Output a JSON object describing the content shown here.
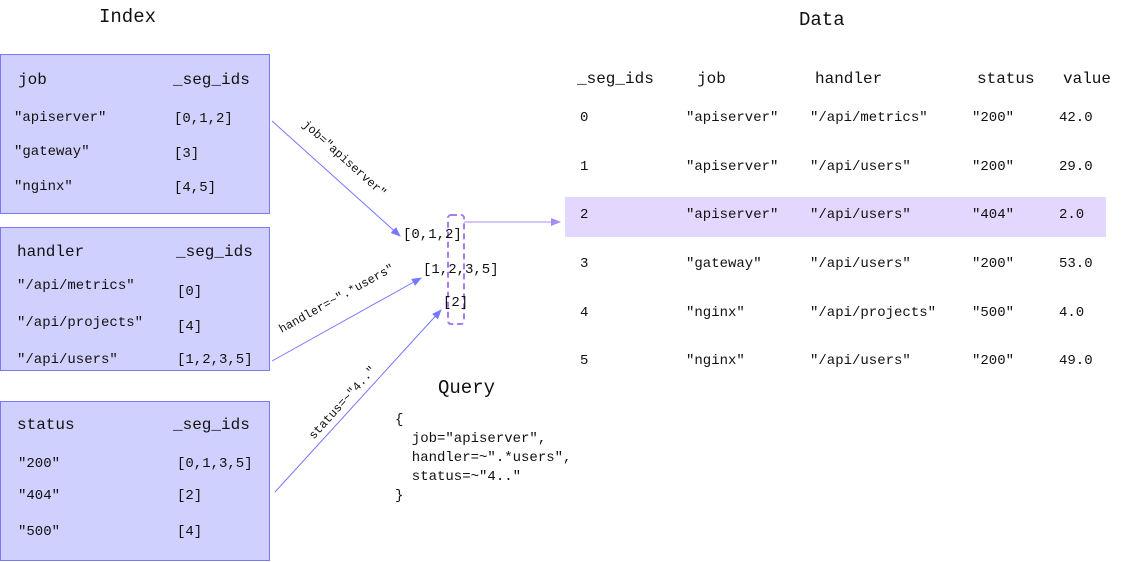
{
  "index": {
    "title": "Index",
    "tables": [
      {
        "key": "job",
        "ids_header": "_seg_ids",
        "rows": [
          [
            "\"apiserver\"",
            "[0,1,2]"
          ],
          [
            "\"gateway\"",
            "[3]"
          ],
          [
            "\"nginx\"",
            "[4,5]"
          ]
        ]
      },
      {
        "key": "handler",
        "ids_header": "_seg_ids",
        "rows": [
          [
            "\"/api/metrics\"",
            "[0]"
          ],
          [
            "\"/api/projects\"",
            "[4]"
          ],
          [
            "\"/api/users\"",
            "[1,2,3,5]"
          ]
        ]
      },
      {
        "key": "status",
        "ids_header": "_seg_ids",
        "rows": [
          [
            "\"200\"",
            "[0,1,3,5]"
          ],
          [
            "\"404\"",
            "[2]"
          ],
          [
            "\"500\"",
            "[4]"
          ]
        ]
      }
    ]
  },
  "matchers": {
    "labels": [
      "job=\"apiserver\"",
      "handler=~\".*users\"",
      "status=~\"4..\""
    ],
    "results": [
      "[0,1,2]",
      "[1,2,3,5]",
      "[2]"
    ]
  },
  "query": {
    "title": "Query",
    "lines": [
      "{",
      "  job=\"apiserver\",",
      "  handler=~\".*users\",",
      "  status=~\"4..\"",
      "}"
    ]
  },
  "data": {
    "title": "Data",
    "headers": [
      "_seg_ids",
      "job",
      "handler",
      "status",
      "value"
    ],
    "rows": [
      [
        "0",
        "\"apiserver\"",
        "\"/api/metrics\"",
        "\"200\"",
        "42.0"
      ],
      [
        "1",
        "\"apiserver\"",
        "\"/api/users\"",
        "\"200\"",
        "29.0"
      ],
      [
        "2",
        "\"apiserver\"",
        "\"/api/users\"",
        "\"404\"",
        "2.0"
      ],
      [
        "3",
        "\"gateway\"",
        "\"/api/users\"",
        "\"200\"",
        "53.0"
      ],
      [
        "4",
        "\"nginx\"",
        "\"/api/projects\"",
        "\"500\"",
        "4.0"
      ],
      [
        "5",
        "\"nginx\"",
        "\"/api/users\"",
        "\"200\"",
        "49.0"
      ]
    ],
    "highlighted_row": 2
  },
  "colors": {
    "box_fill": "#d0d0ff",
    "box_border": "#7a7af5",
    "arrow": "#7777ff",
    "highlight": "#e3d7fd",
    "dashed": "#a77cf0"
  }
}
